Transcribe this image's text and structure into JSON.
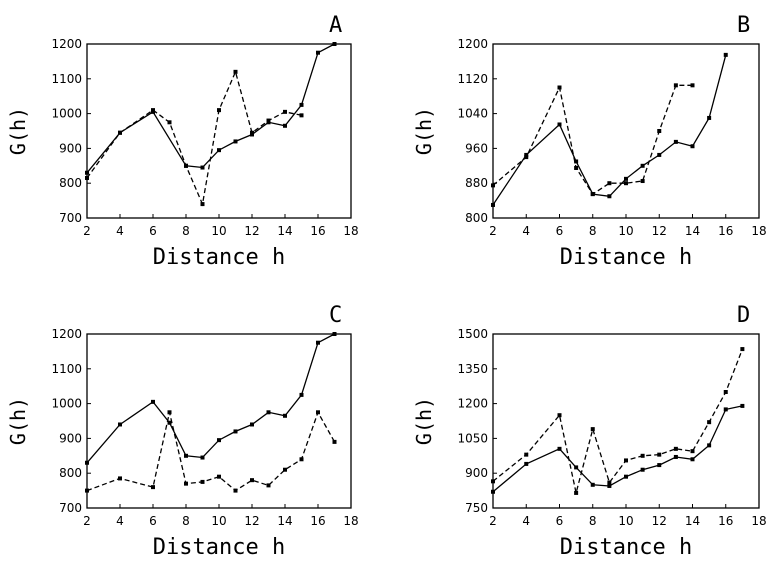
{
  "chart_data": [
    {
      "type": "line",
      "panel": "A",
      "xlabel": "Distance h",
      "ylabel": "G(h)",
      "xlim": [
        2,
        18
      ],
      "ylim": [
        700,
        1200
      ],
      "xticks": [
        2,
        4,
        6,
        8,
        10,
        12,
        14,
        16,
        18
      ],
      "yticks": [
        700,
        800,
        900,
        1000,
        1100,
        1200
      ],
      "series": [
        {
          "style": "solid",
          "x": [
            2,
            4,
            6,
            8,
            9,
            10,
            11,
            12,
            13,
            14,
            15,
            16,
            17
          ],
          "y": [
            830,
            945,
            1005,
            850,
            845,
            895,
            920,
            940,
            975,
            965,
            1025,
            1175,
            1200
          ]
        },
        {
          "style": "dashed",
          "x": [
            2,
            4,
            6,
            7,
            8,
            9,
            10,
            11,
            12,
            13,
            14,
            15
          ],
          "y": [
            815,
            945,
            1010,
            975,
            850,
            740,
            1010,
            1120,
            945,
            980,
            1005,
            995
          ]
        }
      ]
    },
    {
      "type": "line",
      "panel": "B",
      "xlabel": "Distance h",
      "ylabel": "G(h)",
      "xlim": [
        2,
        18
      ],
      "ylim": [
        800,
        1200
      ],
      "xticks": [
        2,
        4,
        6,
        8,
        10,
        12,
        14,
        16,
        18
      ],
      "yticks": [
        800,
        880,
        960,
        1040,
        1120,
        1200
      ],
      "series": [
        {
          "style": "solid",
          "x": [
            2,
            4,
            6,
            7,
            8,
            9,
            10,
            11,
            12,
            13,
            14,
            15,
            16
          ],
          "y": [
            830,
            945,
            1015,
            930,
            855,
            850,
            890,
            920,
            945,
            975,
            965,
            1030,
            1175
          ]
        },
        {
          "style": "dashed",
          "x": [
            2,
            4,
            6,
            7,
            8,
            9,
            10,
            11,
            12,
            13,
            14
          ],
          "y": [
            875,
            940,
            1100,
            915,
            855,
            880,
            880,
            885,
            1000,
            1105,
            1105
          ]
        }
      ]
    },
    {
      "type": "line",
      "panel": "C",
      "xlabel": "Distance h",
      "ylabel": "G(h)",
      "xlim": [
        2,
        18
      ],
      "ylim": [
        700,
        1200
      ],
      "xticks": [
        2,
        4,
        6,
        8,
        10,
        12,
        14,
        16,
        18
      ],
      "yticks": [
        700,
        800,
        900,
        1000,
        1100,
        1200
      ],
      "series": [
        {
          "style": "solid",
          "x": [
            2,
            4,
            6,
            7,
            8,
            9,
            10,
            11,
            12,
            13,
            14,
            15,
            16,
            17
          ],
          "y": [
            830,
            940,
            1005,
            945,
            850,
            845,
            895,
            920,
            940,
            975,
            965,
            1025,
            1175,
            1200
          ]
        },
        {
          "style": "dashed",
          "x": [
            2,
            4,
            6,
            7,
            8,
            9,
            10,
            11,
            12,
            13,
            14,
            15,
            16,
            17
          ],
          "y": [
            750,
            785,
            760,
            975,
            770,
            775,
            790,
            750,
            780,
            765,
            810,
            840,
            975,
            890
          ]
        }
      ]
    },
    {
      "type": "line",
      "panel": "D",
      "xlabel": "Distance h",
      "ylabel": "G(h)",
      "xlim": [
        2,
        18
      ],
      "ylim": [
        750,
        1500
      ],
      "xticks": [
        2,
        4,
        6,
        8,
        10,
        12,
        14,
        16,
        18
      ],
      "yticks": [
        750,
        900,
        1050,
        1200,
        1350,
        1500
      ],
      "series": [
        {
          "style": "solid",
          "x": [
            2,
            4,
            6,
            7,
            8,
            9,
            10,
            11,
            12,
            13,
            14,
            15,
            16,
            17
          ],
          "y": [
            820,
            940,
            1005,
            925,
            850,
            845,
            885,
            915,
            935,
            970,
            960,
            1020,
            1175,
            1190
          ]
        },
        {
          "style": "dashed",
          "x": [
            2,
            4,
            6,
            7,
            8,
            9,
            10,
            11,
            12,
            13,
            14,
            15,
            16,
            17
          ],
          "y": [
            865,
            980,
            1150,
            815,
            1090,
            860,
            955,
            975,
            980,
            1005,
            995,
            1120,
            1250,
            1435
          ]
        }
      ]
    }
  ]
}
